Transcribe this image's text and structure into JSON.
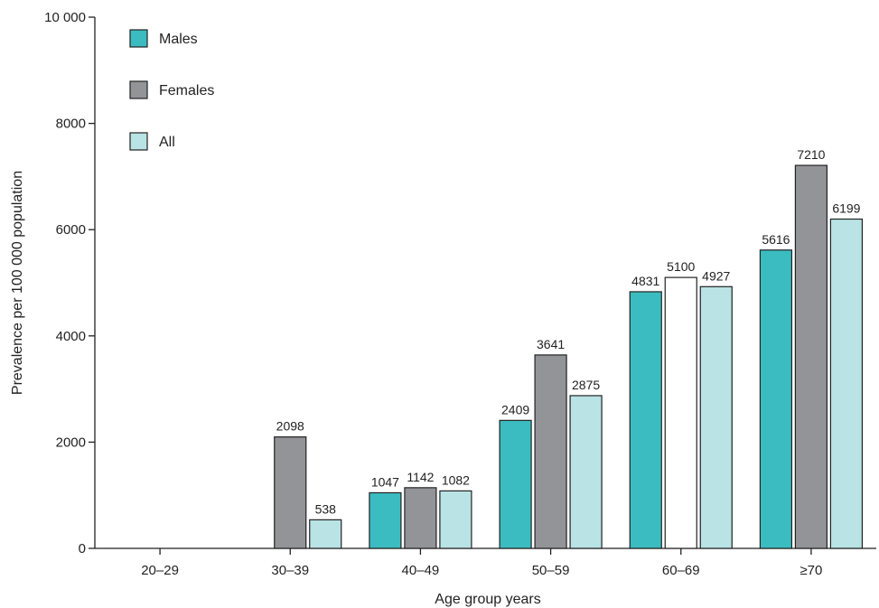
{
  "chart_data": {
    "type": "bar",
    "title": "",
    "xlabel": "Age group years",
    "ylabel": "Prevalence per 100 000 population",
    "ylim": [
      0,
      10000
    ],
    "yticks": [
      0,
      2000,
      4000,
      6000,
      8000,
      10000
    ],
    "ytick_labels": [
      "0",
      "2000",
      "4000",
      "6000",
      "8000",
      "10 000"
    ],
    "grid": false,
    "legend_position": "top-left",
    "categories": [
      "20–29",
      "30–39",
      "40–49",
      "50–59",
      "60–69",
      "≥70"
    ],
    "series": [
      {
        "name": "Males",
        "color": "#3bbcc0",
        "values": [
          null,
          null,
          1047,
          2409,
          4831,
          5616
        ],
        "labels": [
          "",
          "",
          "1047",
          "2409",
          "4831",
          "5616"
        ]
      },
      {
        "name": "Females",
        "color": "#939498",
        "values": [
          null,
          2098,
          1142,
          3641,
          5100,
          7210
        ],
        "labels": [
          "",
          "2098",
          "1142",
          "3641",
          "5100",
          "7210"
        ]
      },
      {
        "name": "All",
        "color": "#b9e3e4",
        "values": [
          null,
          538,
          1082,
          2875,
          4927,
          6199
        ],
        "labels": [
          "",
          "538",
          "1082",
          "2875",
          "4927",
          "6199"
        ]
      }
    ],
    "special_fills": [
      {
        "series": 1,
        "category": 4,
        "color": "#ffffff"
      }
    ]
  }
}
